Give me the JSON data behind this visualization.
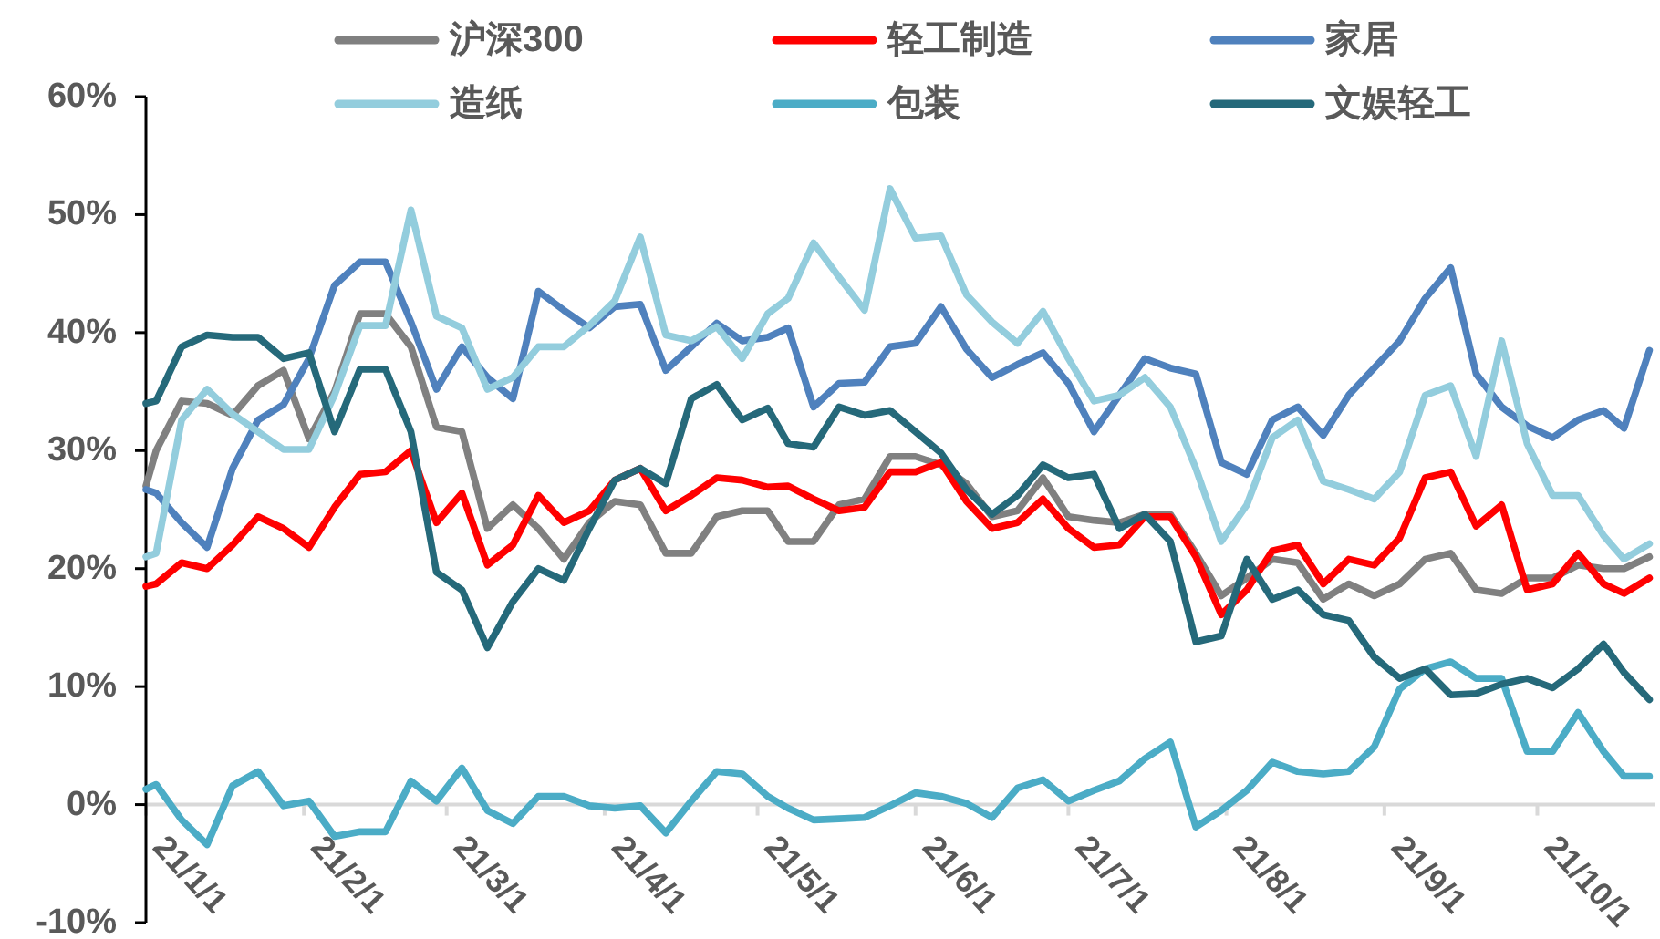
{
  "chart_data": {
    "type": "line",
    "x": [
      "--01-01",
      "--01-03",
      "--01-08",
      "--01-13",
      "--01-18",
      "--01-23",
      "--01-28",
      "--02-02",
      "--02-07",
      "--02-12",
      "--02-17",
      "--02-22",
      "--02-27",
      "--03-04",
      "--03-09",
      "--03-14",
      "--03-19",
      "--03-24",
      "--03-29",
      "--04-03",
      "--04-08",
      "--04-13",
      "--04-18",
      "--04-23",
      "--04-28",
      "--05-03",
      "--05-07",
      "--05-12",
      "--05-17",
      "--05-22",
      "--05-27",
      "--06-01",
      "--06-06",
      "--06-11",
      "--06-16",
      "--06-21",
      "--06-26",
      "--07-01",
      "--07-06",
      "--07-11",
      "--07-16",
      "--07-21",
      "--07-26",
      "--07-31",
      "--08-05",
      "--08-10",
      "--08-15",
      "--08-20",
      "--08-25",
      "--08-30",
      "--09-04",
      "--09-09",
      "--09-14",
      "--09-19",
      "--09-24",
      "--09-29",
      "--10-04",
      "--10-09",
      "--10-14",
      "--10-18",
      "--10-23"
    ],
    "series": [
      {
        "name": "沪深300",
        "color": "#808080",
        "values": [
          27,
          30,
          34.2,
          34,
          33,
          35.5,
          36.8,
          31,
          35,
          41.6,
          41.6,
          38.8,
          32,
          31.6,
          23.4,
          25.4,
          23.4,
          20.8,
          23.9,
          25.7,
          25.4,
          21.3,
          21.3,
          24.4,
          24.9,
          24.9,
          22.3,
          22.3,
          25.4,
          25.9,
          29.5,
          29.5,
          28.8,
          27.2,
          24.4,
          24.9,
          27.7,
          24.4,
          24.1,
          23.9,
          24.6,
          24.6,
          21.3,
          17.7,
          19.2,
          20.8,
          20.5,
          17.4,
          18.7,
          17.7,
          18.7,
          20.8,
          21.3,
          18.2,
          17.9,
          19.2,
          19.2,
          20.3,
          20,
          20,
          21
        ]
      },
      {
        "name": "轻工制造",
        "color": "#ff0000",
        "values": [
          18.5,
          18.7,
          20.5,
          20,
          22,
          24.4,
          23.4,
          21.8,
          25.2,
          28,
          28.2,
          30,
          23.9,
          26.4,
          20.3,
          22,
          26.2,
          23.9,
          24.9,
          27.5,
          28.5,
          24.9,
          26.2,
          27.7,
          27.5,
          26.9,
          27,
          25.9,
          24.9,
          25.2,
          28.2,
          28.2,
          29,
          25.7,
          23.4,
          23.9,
          25.9,
          23.4,
          21.8,
          22,
          24.4,
          24.4,
          21,
          16.1,
          18.2,
          21.5,
          22,
          18.7,
          20.8,
          20.3,
          22.6,
          27.7,
          28.2,
          23.6,
          25.4,
          18.2,
          18.7,
          21.3,
          18.7,
          17.9,
          19.2
        ]
      },
      {
        "name": "家居",
        "color": "#4f81bd",
        "values": [
          26.7,
          26.4,
          23.9,
          21.8,
          28.5,
          32.6,
          33.9,
          37.8,
          44,
          46,
          46,
          40.9,
          35.2,
          38.8,
          36.2,
          34.4,
          43.5,
          41.9,
          40.4,
          42.2,
          42.4,
          36.8,
          38.8,
          40.8,
          39.3,
          39.6,
          40.4,
          33.7,
          35.7,
          35.8,
          38.8,
          39.1,
          42.2,
          38.6,
          36.2,
          37.3,
          38.3,
          35.7,
          31.6,
          34.7,
          37.8,
          37,
          36.5,
          29,
          28,
          32.6,
          33.7,
          31.3,
          34.7,
          37,
          39.3,
          42.9,
          45.5,
          36.5,
          33.7,
          32.1,
          31.1,
          32.6,
          33.4,
          31.9,
          38.5
        ]
      },
      {
        "name": "造纸",
        "color": "#93cddd",
        "values": [
          21,
          21.3,
          32.6,
          35.2,
          33.1,
          31.6,
          30.1,
          30.1,
          34.7,
          40.6,
          40.6,
          50.4,
          41.4,
          40.4,
          35.2,
          36.2,
          38.8,
          38.8,
          40.6,
          42.7,
          48.1,
          39.8,
          39.3,
          40.5,
          37.8,
          41.6,
          42.9,
          47.6,
          44.7,
          41.9,
          52.2,
          48,
          48.2,
          43.2,
          40.9,
          39.1,
          41.8,
          37.8,
          34.2,
          34.7,
          36.2,
          33.7,
          28.5,
          22.3,
          25.4,
          31.1,
          32.6,
          27.4,
          26.7,
          25.9,
          28.2,
          34.7,
          35.5,
          29.5,
          39.3,
          30.6,
          26.2,
          26.2,
          22.8,
          20.8,
          22.1
        ]
      },
      {
        "name": "包装",
        "color": "#4bacc6",
        "values": [
          1.3,
          1.7,
          -1.3,
          -3.4,
          1.6,
          2.8,
          -0.1,
          0.3,
          -2.7,
          -2.3,
          -2.3,
          2,
          0.3,
          3.1,
          -0.5,
          -1.6,
          0.7,
          0.7,
          -0.1,
          -0.3,
          -0.1,
          -2.4,
          0.3,
          2.8,
          2.6,
          0.7,
          -0.3,
          -1.3,
          -1.2,
          -1.1,
          -0.1,
          1,
          0.7,
          0.1,
          -1.1,
          1.4,
          2.1,
          0.3,
          1.2,
          2,
          3.9,
          5.3,
          -1.9,
          -0.5,
          1.2,
          3.6,
          2.8,
          2.6,
          2.8,
          4.9,
          9.8,
          11.5,
          12.1,
          10.7,
          10.7,
          4.5,
          4.5,
          7.8,
          4.5,
          2.4,
          2.4
        ]
      },
      {
        "name": "文娱轻工",
        "color": "#25697a",
        "values": [
          34,
          34.2,
          38.8,
          39.8,
          39.6,
          39.6,
          37.8,
          38.3,
          31.6,
          36.9,
          36.9,
          31.6,
          19.7,
          18.2,
          13.3,
          17.2,
          20,
          19,
          23.4,
          27.5,
          28.5,
          27.2,
          34.4,
          35.6,
          32.6,
          33.6,
          30.6,
          30.3,
          33.7,
          33,
          33.4,
          31.6,
          29.8,
          26.7,
          24.6,
          26.2,
          28.8,
          27.7,
          28,
          23.4,
          24.6,
          22.3,
          13.8,
          14.3,
          20.8,
          17.4,
          18.2,
          16.1,
          15.6,
          12.5,
          10.7,
          11.5,
          9.3,
          9.4,
          10.2,
          10.7,
          9.9,
          11.5,
          13.6,
          11.2,
          8.9
        ]
      }
    ],
    "xlim": [
      "--01-01",
      "--10-24"
    ],
    "xticks": [
      {
        "value": "--01-01",
        "label": "21/1/1"
      },
      {
        "value": "--02-01",
        "label": "21/2/1"
      },
      {
        "value": "--03-01",
        "label": "21/3/1"
      },
      {
        "value": "--04-01",
        "label": "21/4/1"
      },
      {
        "value": "--05-01",
        "label": "21/5/1"
      },
      {
        "value": "--06-01",
        "label": "21/6/1"
      },
      {
        "value": "--07-01",
        "label": "21/7/1"
      },
      {
        "value": "--08-01",
        "label": "21/8/1"
      },
      {
        "value": "--09-01",
        "label": "21/9/1"
      },
      {
        "value": "--10-01",
        "label": "21/10/1"
      }
    ],
    "ylim": [
      -10,
      60
    ],
    "yticks": [
      {
        "value": -10,
        "label": "-10%"
      },
      {
        "value": 0,
        "label": "0%"
      },
      {
        "value": 10,
        "label": "10%"
      },
      {
        "value": 20,
        "label": "20%"
      },
      {
        "value": 30,
        "label": "30%"
      },
      {
        "value": 40,
        "label": "40%"
      },
      {
        "value": 50,
        "label": "50%"
      },
      {
        "value": 60,
        "label": "60%"
      }
    ],
    "legend": "top"
  }
}
